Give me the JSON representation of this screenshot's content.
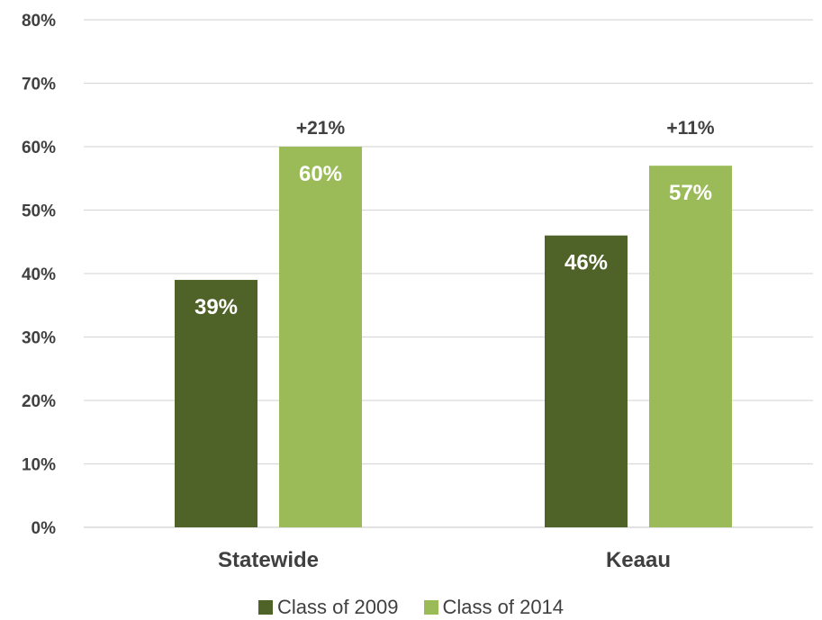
{
  "chart_data": {
    "type": "bar",
    "categories": [
      "Statewide",
      "Keaau"
    ],
    "series": [
      {
        "name": "Class of 2009",
        "values": [
          39,
          46
        ],
        "labels": [
          "39%",
          "46%"
        ],
        "color": "#4f6228"
      },
      {
        "name": "Class of 2014",
        "values": [
          60,
          57
        ],
        "labels": [
          "60%",
          "57%"
        ],
        "color": "#9bbb59"
      }
    ],
    "annotations": [
      "+21%",
      "+11%"
    ],
    "yticks": [
      "0%",
      "10%",
      "20%",
      "30%",
      "40%",
      "50%",
      "60%",
      "70%",
      "80%"
    ],
    "ylim": [
      0,
      80
    ],
    "grid": true,
    "legend_position": "bottom"
  }
}
